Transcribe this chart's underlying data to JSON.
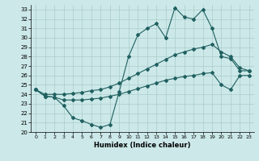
{
  "xlabel": "Humidex (Indice chaleur)",
  "xlim": [
    -0.5,
    23.5
  ],
  "ylim": [
    20,
    33.5
  ],
  "yticks": [
    20,
    21,
    22,
    23,
    24,
    25,
    26,
    27,
    28,
    29,
    30,
    31,
    32,
    33
  ],
  "xticks": [
    0,
    1,
    2,
    3,
    4,
    5,
    6,
    7,
    8,
    9,
    10,
    11,
    12,
    13,
    14,
    15,
    16,
    17,
    18,
    19,
    20,
    21,
    22,
    23
  ],
  "bg_color": "#cce8e8",
  "grid_color": "#aacccc",
  "line_color": "#206060",
  "line1_y": [
    24.5,
    23.8,
    23.7,
    22.8,
    21.5,
    21.2,
    20.8,
    20.5,
    20.8,
    24.3,
    28.0,
    30.3,
    31.0,
    31.5,
    30.0,
    33.2,
    32.2,
    32.0,
    33.0,
    31.0,
    28.0,
    27.8,
    26.5,
    26.5
  ],
  "line2_y": [
    24.5,
    24.0,
    24.0,
    24.0,
    24.1,
    24.2,
    24.4,
    24.5,
    24.8,
    25.2,
    25.7,
    26.2,
    26.7,
    27.2,
    27.7,
    28.2,
    28.5,
    28.8,
    29.0,
    29.3,
    28.5,
    28.0,
    26.8,
    26.5
  ],
  "line3_y": [
    24.5,
    23.8,
    23.7,
    23.4,
    23.4,
    23.4,
    23.5,
    23.6,
    23.8,
    24.0,
    24.3,
    24.6,
    24.9,
    25.2,
    25.5,
    25.7,
    25.9,
    26.0,
    26.2,
    26.3,
    25.0,
    24.5,
    26.0,
    26.0
  ]
}
